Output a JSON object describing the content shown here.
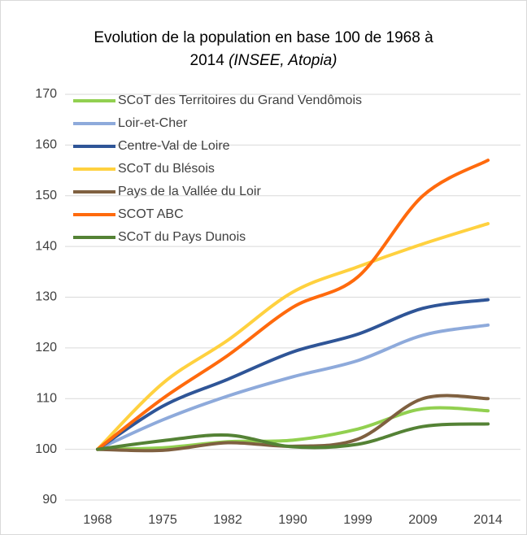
{
  "chart_data": {
    "type": "line",
    "title": "Evolution de la population en base 100 de 1968 à",
    "title_line2": "2014",
    "source": "(INSEE, Atopia)",
    "categories": [
      "1968",
      "1975",
      "1982",
      "1990",
      "1999",
      "2009",
      "2014"
    ],
    "series": [
      {
        "name": "SCoT des Territoires du Grand Vendômois",
        "color": "#92d050",
        "values": [
          100,
          100.3,
          101.5,
          101.8,
          104,
          108,
          107.6
        ]
      },
      {
        "name": "Loir-et-Cher",
        "color": "#8eaadb",
        "values": [
          100,
          105.8,
          110.5,
          114.3,
          117.5,
          122.5,
          124.5
        ]
      },
      {
        "name": "Centre-Val de Loire",
        "color": "#2f5597",
        "values": [
          100,
          108.5,
          113.8,
          119.2,
          122.7,
          127.8,
          129.5
        ]
      },
      {
        "name": "SCoT du Blésois",
        "color": "#ffd13f",
        "values": [
          100,
          113,
          121.5,
          131,
          136,
          140.5,
          144.5
        ]
      },
      {
        "name": "Pays de la Vallée du Loir",
        "color": "#7f6040",
        "values": [
          100,
          99.8,
          101.3,
          100.6,
          102,
          110,
          110
        ]
      },
      {
        "name": "SCOT ABC",
        "color": "#ff6a0d",
        "values": [
          100,
          110,
          118.5,
          128,
          134,
          150,
          157
        ]
      },
      {
        "name": "SCoT du Pays Dunois",
        "color": "#548235",
        "values": [
          100,
          101.7,
          102.8,
          100.5,
          101,
          104.5,
          105
        ]
      }
    ],
    "ylim": [
      90,
      170
    ],
    "yticks": [
      90,
      100,
      110,
      120,
      130,
      140,
      150,
      160,
      170
    ],
    "grid": true,
    "legend": "top-left"
  }
}
